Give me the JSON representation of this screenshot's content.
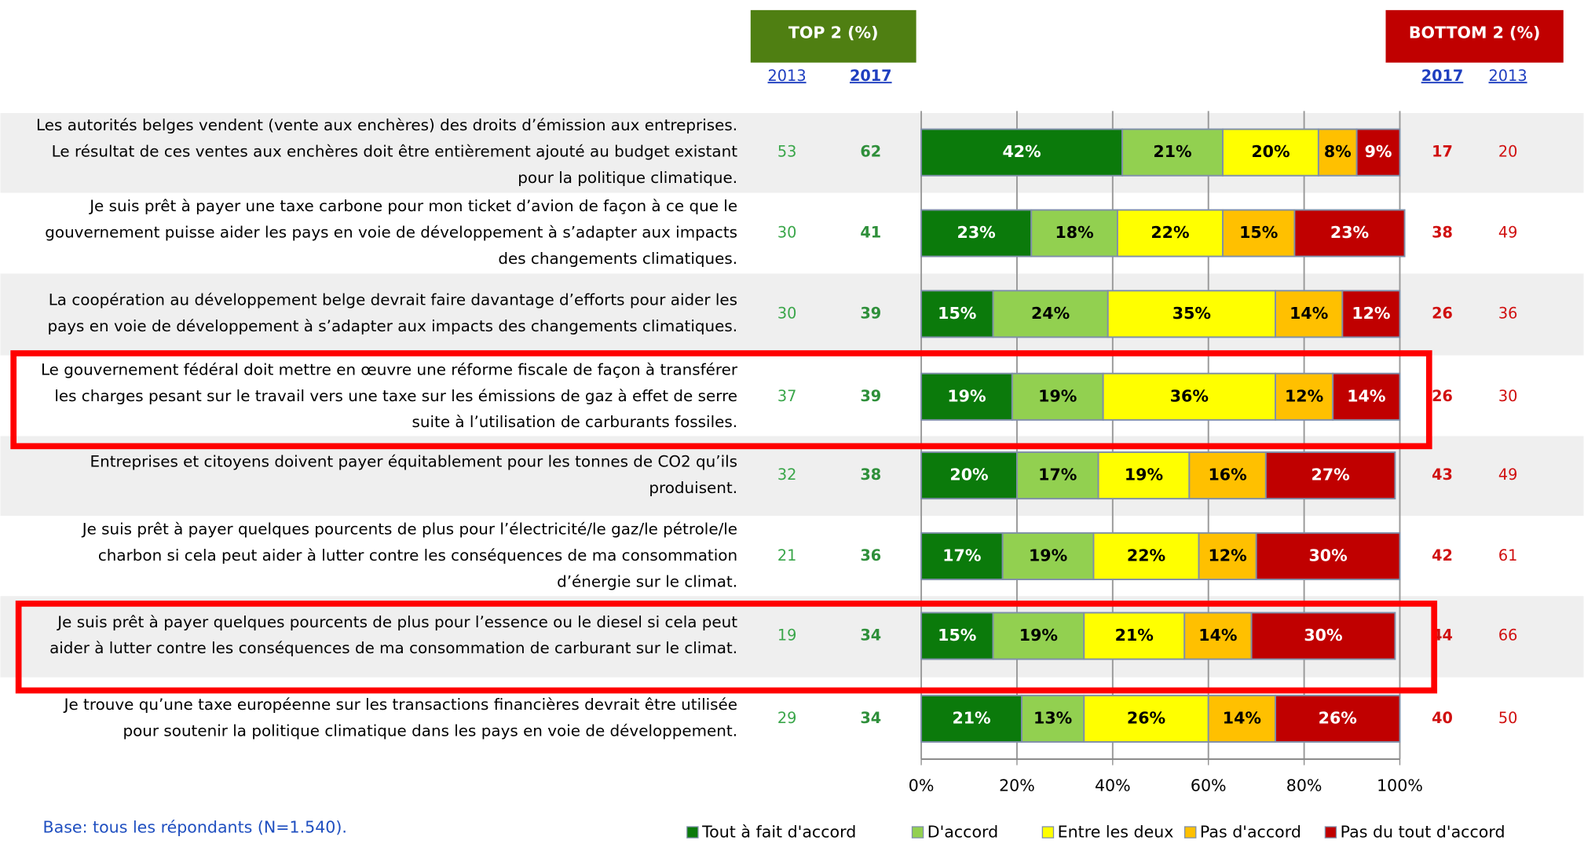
{
  "chart_data": {
    "type": "bar",
    "orientation": "horizontal",
    "stacked": true,
    "categories": [
      [
        "Les autorités belges vendent (vente aux enchères) des droits d’émission aux entreprises.",
        "Le résultat de ces ventes aux enchères doit être entièrement ajouté au budget existant",
        "pour la politique climatique."
      ],
      [
        "Je suis prêt à payer une taxe carbone pour mon ticket d’avion de façon à ce que le",
        "gouvernement puisse aider les pays en voie de développement à s’adapter aux impacts",
        "des changements climatiques."
      ],
      [
        "La coopération au développement belge devrait faire davantage d’efforts pour aider les",
        "pays en voie de développement à s’adapter aux impacts des changements climatiques."
      ],
      [
        "Le gouvernement fédéral doit mettre en œuvre une réforme fiscale de façon à transférer",
        "les charges pesant sur le travail vers une taxe sur les émissions de gaz à effet de serre",
        "suite à l’utilisation de carburants fossiles."
      ],
      [
        "Entreprises et citoyens doivent payer équitablement pour les tonnes de CO2 qu’ils",
        "produisent."
      ],
      [
        "Je suis prêt à payer quelques pourcents de plus pour l’électricité/le gaz/le pétrole/le",
        "charbon si cela peut aider à lutter contre les conséquences de ma consommation",
        "d’énergie sur le climat."
      ],
      [
        "Je suis prêt à payer quelques pourcents de plus pour l’essence ou le diesel si cela peut",
        "aider à lutter contre les conséquences de ma consommation de carburant sur le climat."
      ],
      [
        "Je trouve qu’une taxe européenne sur les transactions financières devrait être utilisée",
        "pour soutenir la politique climatique dans les pays en voie de développement."
      ]
    ],
    "series": [
      {
        "name": "Tout à fait d'accord",
        "color": "#0b7a0b",
        "values": [
          42,
          23,
          15,
          19,
          20,
          17,
          15,
          21
        ],
        "value_labels": [
          "42%",
          "23%",
          "15%",
          "19%",
          "20%",
          "17%",
          "15%",
          "21%"
        ]
      },
      {
        "name": "D'accord",
        "color": "#92d050",
        "values": [
          21,
          18,
          24,
          19,
          17,
          19,
          19,
          13
        ],
        "value_labels": [
          "21%",
          "18%",
          "24%",
          "19%",
          "17%",
          "19%",
          "19%",
          "13%"
        ]
      },
      {
        "name": "Entre les deux",
        "color": "#ffff00",
        "values": [
          20,
          22,
          35,
          36,
          19,
          22,
          21,
          26
        ],
        "value_labels": [
          "20%",
          "22%",
          "35%",
          "36%",
          "19%",
          "22%",
          "21%",
          "26%"
        ]
      },
      {
        "name": "Pas d'accord",
        "color": "#ffc000",
        "values": [
          8,
          15,
          14,
          12,
          16,
          12,
          14,
          14
        ],
        "value_labels": [
          "8%",
          "15%",
          "14%",
          "12%",
          "16%",
          "12%",
          "14%",
          "14%"
        ]
      },
      {
        "name": "Pas du tout d'accord",
        "color": "#c00000",
        "values": [
          9,
          23,
          12,
          14,
          27,
          30,
          30,
          26
        ],
        "value_labels": [
          "9%",
          "23%",
          "12%",
          "14%",
          "27%",
          "30%",
          "30%",
          "26%"
        ]
      }
    ],
    "xlim": [
      0,
      100
    ],
    "xticks": [
      {
        "value": 0,
        "label": "0%"
      },
      {
        "value": 20,
        "label": "20%"
      },
      {
        "value": 40,
        "label": "40%"
      },
      {
        "value": 60,
        "label": "60%"
      },
      {
        "value": 80,
        "label": "80%"
      },
      {
        "value": 100,
        "label": "100%"
      }
    ],
    "grid": true,
    "legend": "bottom",
    "top2": {
      "title": "TOP 2 (%)",
      "columns": [
        {
          "year": "2013",
          "values": [
            53,
            30,
            30,
            37,
            32,
            21,
            19,
            29
          ]
        },
        {
          "year": "2017",
          "values": [
            62,
            41,
            39,
            39,
            38,
            36,
            34,
            34
          ]
        }
      ]
    },
    "bottom2": {
      "title": "BOTTOM 2 (%)",
      "columns": [
        {
          "year": "2017",
          "values": [
            17,
            38,
            26,
            26,
            43,
            42,
            44,
            40
          ]
        },
        {
          "year": "2013",
          "values": [
            20,
            49,
            36,
            30,
            49,
            61,
            66,
            50
          ]
        }
      ]
    },
    "note": "Base: tous les répondants (N=1.540)."
  }
}
